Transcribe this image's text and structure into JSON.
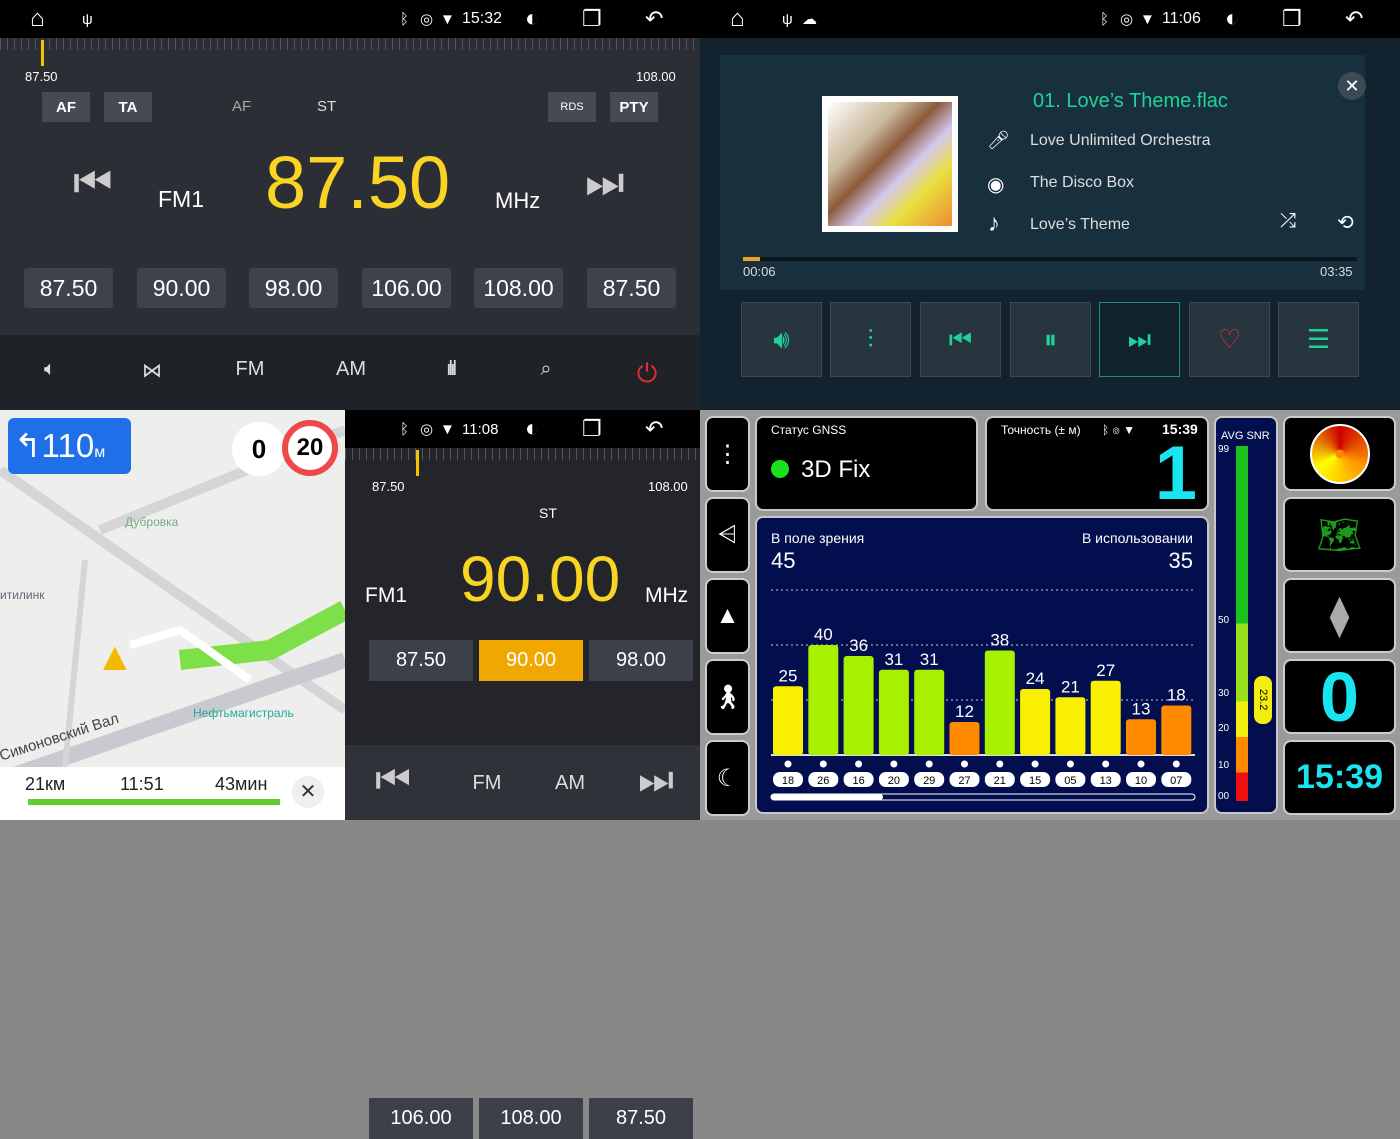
{
  "radio1": {
    "status": {
      "time": "15:32"
    },
    "scale_min": "87.50",
    "scale_max": "108.00",
    "tags": {
      "af": "AF",
      "ta": "TA",
      "af_ind": "AF",
      "st": "ST",
      "rds": "RDS",
      "pty": "PTY"
    },
    "band": "FM1",
    "freq": "87.50",
    "unit": "MHz",
    "presets": [
      "87.50",
      "90.00",
      "98.00",
      "106.00",
      "108.00",
      "87.50"
    ],
    "bottom": {
      "fm": "FM",
      "am": "AM"
    }
  },
  "music": {
    "status": {
      "time": "11:06"
    },
    "file": "01. Love’s Theme.flac",
    "artist": "Love Unlimited Orchestra",
    "album": "The Disco Box",
    "title": "Love’s Theme",
    "elapsed": "00:06",
    "duration": "03:35",
    "progress_percent": 2.8,
    "accent": "#1fd29a"
  },
  "map": {
    "maneuver_distance": "110",
    "maneuver_unit": "м",
    "speed": "0",
    "speed_limit": "20",
    "places": [
      "Дубровка",
      "итилинк",
      "Нефтьмагистраль",
      "Симоновский Вал"
    ],
    "distance": "21км",
    "eta": "11:51",
    "duration": "43мин"
  },
  "radio2": {
    "status": {
      "time": "11:08"
    },
    "scale_min": "87.50",
    "scale_max": "108.00",
    "st": "ST",
    "band": "FM1",
    "freq": "90.00",
    "unit": "MHz",
    "presets": [
      "87.50",
      "90.00",
      "98.00",
      "106.00",
      "108.00",
      "87.50"
    ],
    "selected_preset": 1,
    "bottom": {
      "fm": "FM",
      "am": "AM"
    }
  },
  "gnss": {
    "status": {
      "time": "15:39"
    },
    "status_label": "Статус GNSS",
    "fix": "3D Fix",
    "accuracy_label": "Точность (± м)",
    "accuracy": "1",
    "in_view_label": "В поле зрения",
    "in_view": "45",
    "in_use_label": "В использовании",
    "in_use": "35",
    "snr_label": "AVG SNR",
    "snr_ticks": [
      "99",
      "50",
      "30",
      "20",
      "10",
      "00"
    ],
    "snr_value": "23.2",
    "speed": "0",
    "clock": "15:39",
    "chart_data": {
      "type": "bar",
      "categories": [
        "18",
        "26",
        "16",
        "20",
        "29",
        "27",
        "21",
        "15",
        "05",
        "13",
        "10",
        "07"
      ],
      "values": [
        25,
        40,
        36,
        31,
        31,
        12,
        38,
        24,
        21,
        27,
        13,
        18
      ],
      "colors": {
        "high": "#a6f000",
        "mid": "#f8f000",
        "low": "#ff8a00"
      }
    }
  }
}
